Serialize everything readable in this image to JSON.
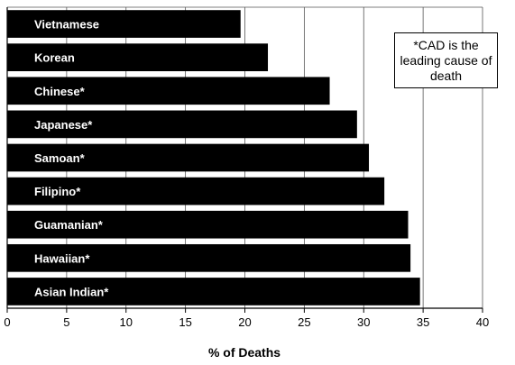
{
  "chart_data": {
    "type": "bar",
    "orientation": "horizontal",
    "categories": [
      "Vietnamese",
      "Korean",
      "Chinese*",
      "Japanese*",
      "Samoan*",
      "Filipino*",
      "Guamanian*",
      "Hawaiian*",
      "Asian Indian*"
    ],
    "values": [
      19.6,
      21.9,
      27.1,
      29.4,
      30.4,
      31.7,
      33.7,
      33.9,
      34.7
    ],
    "title": "",
    "xlabel": "% of Deaths",
    "ylabel": "",
    "xlim": [
      0,
      40
    ],
    "ticks": [
      "0",
      "5",
      "10",
      "15",
      "20",
      "25",
      "30",
      "35",
      "40"
    ],
    "grid": "vertical",
    "bar_color": "#000000",
    "label_color": "#ffffff",
    "annotation": "*CAD is the leading cause of death"
  }
}
